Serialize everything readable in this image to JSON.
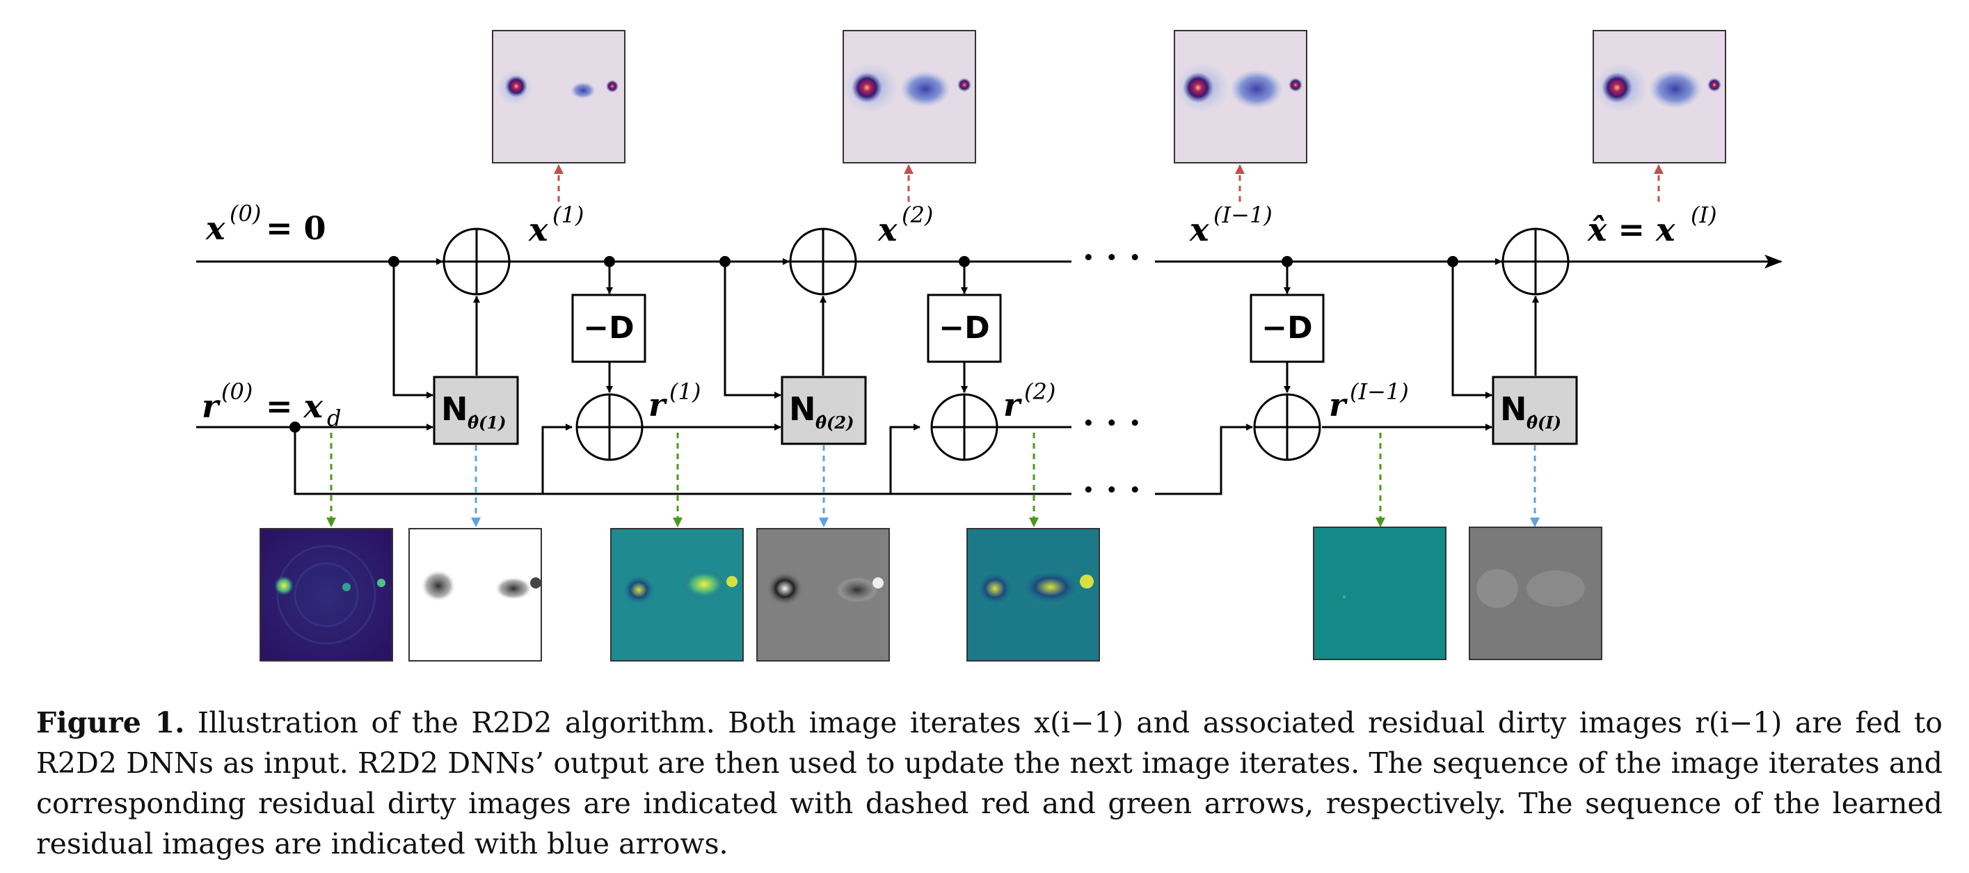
{
  "labels": {
    "x0": "x",
    "x0_sup": "(0)",
    "x0_rhs": "= 0",
    "r0": "r",
    "r0_sup": "(0)",
    "r0_rhs": "= x",
    "r0_sub": "d",
    "x1": "x",
    "x1_sup": "(1)",
    "x2": "x",
    "x2_sup": "(2)",
    "xI1": "x",
    "xI1_sup": "(I−1)",
    "xhat": "x̂ = x",
    "xhat_sup": "(I)",
    "r1": "r",
    "r1_sup": "(1)",
    "r2": "r",
    "r2_sup": "(2)",
    "rI1": "r",
    "rI1_sup": "(I−1)",
    "dots": "· · ·"
  },
  "operators": {
    "minus_d": "−D",
    "net": "N",
    "net1_sub": "θ̂(1)",
    "net2_sub": "θ̂(2)",
    "netI_sub": "θ̂(I)"
  },
  "colors": {
    "red_arrow": "#c0504d",
    "green_arrow": "#4a9a1a",
    "blue_arrow": "#5ba3e8",
    "net_box": "#d4d4d4"
  },
  "caption": {
    "figure_label": "Figure 1.",
    "text": "Illustration of the R2D2 algorithm. Both image iterates x(i−1) and associated residual dirty images r(i−1) are fed to R2D2 DNNs as input. R2D2 DNNs’ output are then used to update the next image iterates. The sequence of the image iterates and corresponding residual dirty images are indicated with dashed red and green arrows, respectively. The sequence of the learned residual images are indicated with blue arrows."
  }
}
